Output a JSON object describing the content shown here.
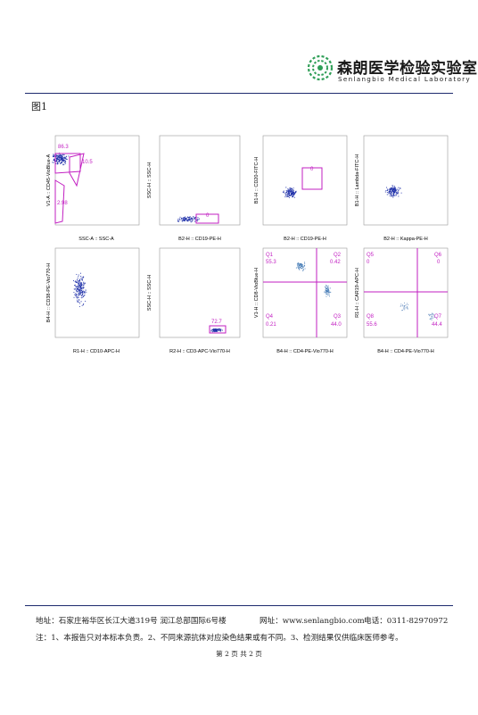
{
  "header": {
    "lab_name_cn": "森朗医学检验实验室",
    "lab_name_en": "Senlangbio Medical Laboratory"
  },
  "figure_label": "图1",
  "plots": [
    {
      "xlabel": "SSC-A :: SSC-A",
      "ylabel": "V1-A :: CD45-VioBlue-A",
      "gates": [
        "86.3",
        "10.5",
        "2.98"
      ]
    },
    {
      "xlabel": "B2-H :: CD19-PE-H",
      "ylabel": "SSC-H :: SSC-H",
      "gates": [
        "0"
      ]
    },
    {
      "xlabel": "B2-H :: CD19-PE-H",
      "ylabel": "B1-H :: CD20-FITC-H",
      "gates": [
        "0"
      ]
    },
    {
      "xlabel": "B2-H :: Kappa-PE-H",
      "ylabel": "B1-H :: Lambda-FITC-H",
      "gates": []
    },
    {
      "xlabel": "R1-H :: CD10-APC-H",
      "ylabel": "B4-H :: CD38-PE-Vio770-H",
      "gates": []
    },
    {
      "xlabel": "R2-H :: CD3-APC-Vio770-H",
      "ylabel": "SSC-H :: SSC-H",
      "gates": [
        "72.7"
      ]
    },
    {
      "xlabel": "B4-H :: CD4-PE-Vio770-H",
      "ylabel": "V1-H :: CD8-VioBlue-H",
      "gates": [
        "Q1",
        "55.3",
        "Q2",
        "0.42",
        "Q4",
        "0.21",
        "Q3",
        "44.0"
      ]
    },
    {
      "xlabel": "B4-H :: CD4-PE-Vio770-H",
      "ylabel": "R1-H :: CAR19-APC-H",
      "gates": [
        "Q5",
        "0",
        "Q6",
        "0",
        "Q8",
        "55.6",
        "Q7",
        "44.4"
      ]
    }
  ],
  "footer": {
    "address": "地址：石家庄裕华区长江大道319号 润江总部国际6号楼",
    "website": "网址：www.senlangbio.com",
    "phone": "电话：0311-82970972",
    "note": "注：1、本报告只对本标本负责。2、不同来源抗体对应染色结果或有不同。3、检测结果仅供临床医师参考。",
    "page": "第 2 页  共 2 页"
  },
  "colors": {
    "gate": "#c21fc2",
    "rule": "#1d2a6d",
    "dots": "#2233aa"
  }
}
